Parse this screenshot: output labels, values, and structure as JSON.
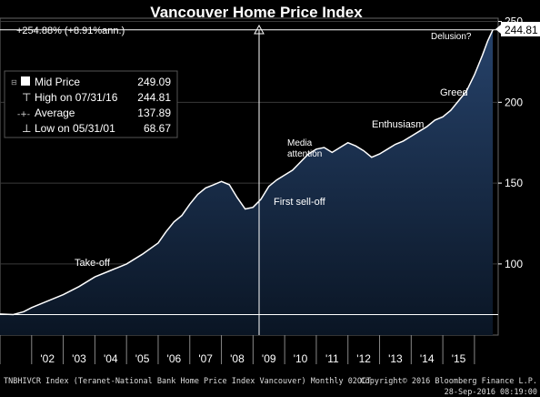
{
  "chart_data": {
    "type": "area",
    "title": "Vancouver Home Price Index",
    "x_tick_labels": [
      "'02",
      "'03",
      "'04",
      "'05",
      "'06",
      "'07",
      "'08",
      "'09",
      "'10",
      "'11",
      "'12",
      "'13",
      "'14",
      "'15"
    ],
    "y_ticks": [
      100,
      150,
      200,
      250
    ],
    "y_tick_labels": [
      "100",
      "150",
      "200",
      "250"
    ],
    "ylim": [
      56,
      252
    ],
    "xlim": [
      2001.0,
      2016.75
    ],
    "series": [
      {
        "x": [
          2001.0,
          2001.42,
          2001.75,
          2002.0,
          2002.5,
          2003.0,
          2003.5,
          2004.0,
          2004.5,
          2005.0,
          2005.5,
          2006.0,
          2006.25,
          2006.5,
          2006.75,
          2007.0,
          2007.25,
          2007.5,
          2007.75,
          2008.0,
          2008.25,
          2008.5,
          2008.75,
          2009.0,
          2009.25,
          2009.5,
          2009.75,
          2010.0,
          2010.25,
          2010.5,
          2010.75,
          2011.0,
          2011.25,
          2011.5,
          2011.75,
          2012.0,
          2012.25,
          2012.5,
          2012.75,
          2013.0,
          2013.25,
          2013.5,
          2013.75,
          2014.0,
          2014.25,
          2014.5,
          2014.75,
          2015.0,
          2015.25,
          2015.5,
          2015.75,
          2016.0,
          2016.25,
          2016.42,
          2016.58
        ],
        "y": [
          69.0,
          68.67,
          70.5,
          73,
          77,
          81,
          86,
          92,
          96,
          100,
          106,
          113,
          120,
          126,
          130,
          137,
          143,
          147,
          149,
          151,
          149,
          141,
          134,
          135,
          140,
          148,
          152,
          155,
          158,
          163,
          168,
          171,
          172,
          169,
          172,
          175,
          173,
          170,
          166,
          168,
          171,
          174,
          176,
          179,
          182,
          185,
          189,
          191,
          195,
          201,
          207,
          217,
          229,
          238,
          244.81
        ]
      }
    ],
    "annotations": [
      {
        "text": "Take-off"
      },
      {
        "text": "First sell-off"
      },
      {
        "text": "Media"
      },
      {
        "text": "attention"
      },
      {
        "text": "Enthusiasm"
      },
      {
        "text": "Greed"
      },
      {
        "text": "Delusion?"
      }
    ],
    "change_label": "+254.88% (+8.91%ann.)",
    "last_value_label": "244.81",
    "legend": [
      {
        "symbol": "■",
        "label": "Mid Price",
        "value": "249.09"
      },
      {
        "symbol": "⊤",
        "label": "High on 07/31/16",
        "value": "244.81"
      },
      {
        "symbol": "-+-",
        "label": "Average",
        "value": "137.89"
      },
      {
        "symbol": "⊥",
        "label": "Low on 05/31/01",
        "value": "68.67"
      }
    ],
    "high_value": 244.81,
    "low_value": 68.67,
    "grid": true
  },
  "footer": {
    "left": "TNBHIVCR Index (Teranet-National Bank Home Price Index Vancouver) Monthly 02OCT",
    "right_line1": "Copyright© 2016 Bloomberg Finance L.P.",
    "right_line2": "28-Sep-2016 08:19:00"
  },
  "colors": {
    "fill_top": "#223a5c",
    "fill_bottom": "#0a1626",
    "line": "#ffffff",
    "grid": "#3a3a3a",
    "legend_bg": "#000000"
  }
}
